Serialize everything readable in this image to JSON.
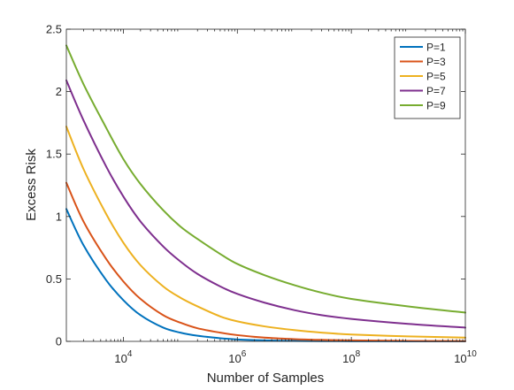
{
  "chart_data": {
    "type": "line",
    "title": "",
    "xlabel": "Number of Samples",
    "ylabel": "Excess Risk",
    "xscale": "log",
    "xlim": [
      1000,
      10000000000
    ],
    "ylim": [
      0,
      2.5
    ],
    "grid": false,
    "legend_position": "top-right",
    "x_ticks": [
      10000,
      1000000,
      100000000,
      10000000000
    ],
    "x_tick_labels": [
      {
        "base": "10",
        "exp": "4"
      },
      {
        "base": "10",
        "exp": "6"
      },
      {
        "base": "10",
        "exp": "8"
      },
      {
        "base": "10",
        "exp": "10"
      }
    ],
    "y_ticks": [
      0,
      0.5,
      1,
      1.5,
      2,
      2.5
    ],
    "y_tick_labels": [
      "0",
      "0.5",
      "1",
      "1.5",
      "2",
      "2.5"
    ],
    "x": [
      1000,
      2000,
      5000,
      10000,
      20000,
      50000,
      100000,
      200000,
      500000,
      1000000,
      3000000,
      10000000,
      30000000,
      100000000,
      1000000000,
      10000000000
    ],
    "series": [
      {
        "name": "P=1",
        "color": "#0072BD",
        "values": [
          1.06,
          0.77,
          0.49,
          0.33,
          0.21,
          0.11,
          0.07,
          0.045,
          0.025,
          0.015,
          0.008,
          0.004,
          0.002,
          0.001,
          0.0004,
          0.0001
        ]
      },
      {
        "name": "P=3",
        "color": "#D95319",
        "values": [
          1.27,
          0.96,
          0.66,
          0.48,
          0.34,
          0.21,
          0.15,
          0.105,
          0.07,
          0.05,
          0.03,
          0.018,
          0.012,
          0.008,
          0.004,
          0.002
        ]
      },
      {
        "name": "P=5",
        "color": "#EDB120",
        "values": [
          1.72,
          1.38,
          1.02,
          0.79,
          0.61,
          0.44,
          0.35,
          0.28,
          0.2,
          0.16,
          0.12,
          0.09,
          0.07,
          0.055,
          0.04,
          0.03
        ]
      },
      {
        "name": "P=7",
        "color": "#7E2F8E",
        "values": [
          2.09,
          1.77,
          1.4,
          1.16,
          0.96,
          0.76,
          0.64,
          0.54,
          0.44,
          0.38,
          0.31,
          0.25,
          0.21,
          0.18,
          0.14,
          0.11
        ]
      },
      {
        "name": "P=9",
        "color": "#77AC30",
        "values": [
          2.37,
          2.06,
          1.71,
          1.46,
          1.26,
          1.05,
          0.92,
          0.82,
          0.7,
          0.62,
          0.53,
          0.45,
          0.39,
          0.34,
          0.28,
          0.23
        ]
      }
    ]
  }
}
